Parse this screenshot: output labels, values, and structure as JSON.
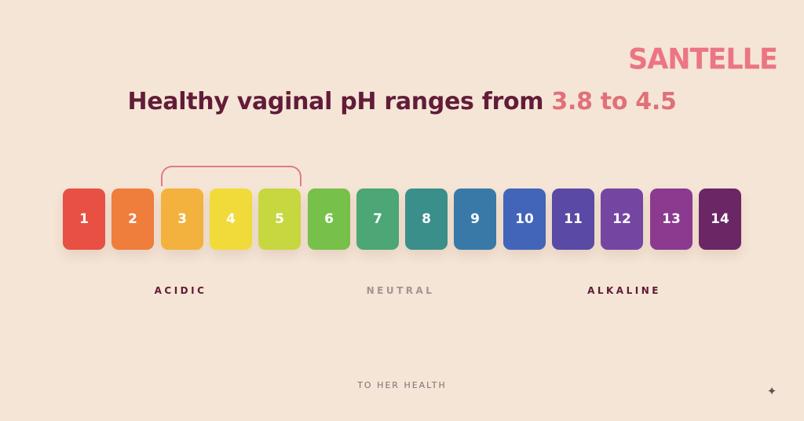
{
  "brand": {
    "logo_text": "SANTELLE",
    "logo_color": "#ec7583"
  },
  "title": {
    "prefix": "Healthy vaginal pH ranges from ",
    "highlight": "3.8 to 4.5"
  },
  "scale": {
    "highlighted_range": [
      3,
      5
    ],
    "tiles": [
      {
        "label": "1",
        "color": "#e85044"
      },
      {
        "label": "2",
        "color": "#ef7d3b"
      },
      {
        "label": "3",
        "color": "#f3b23d"
      },
      {
        "label": "4",
        "color": "#f1db3b"
      },
      {
        "label": "5",
        "color": "#c7d740"
      },
      {
        "label": "6",
        "color": "#77c049"
      },
      {
        "label": "7",
        "color": "#4ca676"
      },
      {
        "label": "8",
        "color": "#3b8f8a"
      },
      {
        "label": "9",
        "color": "#3879a8"
      },
      {
        "label": "10",
        "color": "#4265b9"
      },
      {
        "label": "11",
        "color": "#5a49a5"
      },
      {
        "label": "12",
        "color": "#7446a2"
      },
      {
        "label": "13",
        "color": "#8c3a8f"
      },
      {
        "label": "14",
        "color": "#6b2666"
      }
    ]
  },
  "categories": {
    "acidic": {
      "text": "ACIDIC",
      "color": "#5e1a36"
    },
    "neutral": {
      "text": "NEUTRAL",
      "color": "#a89093"
    },
    "alkaline": {
      "text": "ALKALINE",
      "color": "#5e1a36"
    }
  },
  "footer": {
    "text": "TO HER HEALTH"
  },
  "icons": {
    "corner": "sparkle-icon"
  }
}
